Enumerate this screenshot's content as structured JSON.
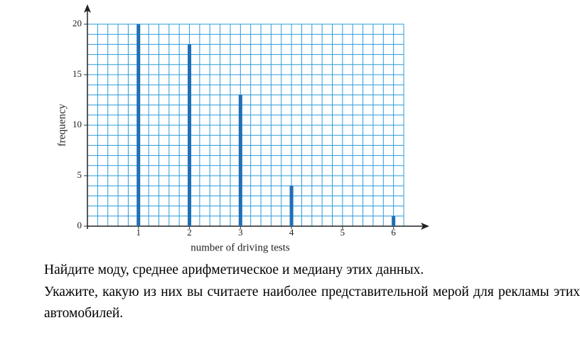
{
  "chart_data": {
    "type": "bar",
    "x_label": "number of driving tests",
    "y_label": "frequency",
    "x": [
      1,
      2,
      3,
      4,
      5,
      6
    ],
    "values": [
      20,
      18,
      13,
      4,
      0,
      1
    ],
    "color": "#1f6fb5",
    "xlim": [
      0,
      6.2
    ],
    "ylim": [
      0,
      20
    ],
    "xticks": [
      1,
      2,
      3,
      4,
      5,
      6
    ],
    "yticks": [
      0,
      5,
      10,
      15,
      20
    ],
    "grid": true
  },
  "text": {
    "question": "Найдите моду, среднее арифметическое и медиану этих данных.",
    "instruction": "Укажите, какую из них вы считаете наиболее представительной мерой для рекламы этих автомобилей."
  }
}
